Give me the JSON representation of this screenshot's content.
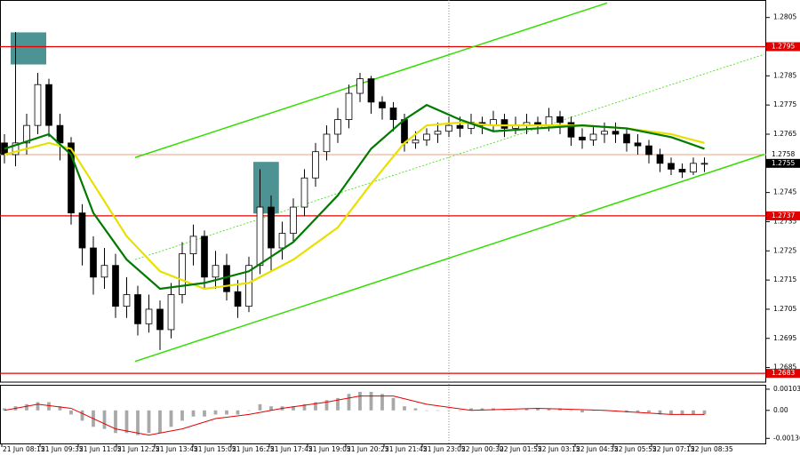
{
  "chart_data": {
    "type": "candlestick",
    "open": [
      1.2762,
      1.2758,
      1.2762,
      1.2768,
      1.2782,
      1.2768,
      1.2762,
      1.2738,
      1.2726,
      1.2716,
      1.272,
      1.2706,
      1.271,
      1.27,
      1.2705,
      1.2698,
      1.271,
      1.2724,
      1.273,
      1.2716,
      1.272,
      1.2711,
      1.2706,
      1.272,
      1.274,
      1.2726,
      1.2731,
      1.274,
      1.275,
      1.2759,
      1.2765,
      1.277,
      1.2779,
      1.2784,
      1.2776,
      1.2774,
      1.277,
      1.2762,
      1.2763,
      1.2765,
      1.2766,
      1.2768,
      1.2767,
      1.2769,
      1.2768,
      1.277,
      1.2767,
      1.2768,
      1.2769,
      1.2768,
      1.2771,
      1.2769,
      1.2764,
      1.2763,
      1.2765,
      1.2766,
      1.2765,
      1.2762,
      1.2761,
      1.2758,
      1.2755,
      1.2753,
      1.2752,
      1.2755
    ],
    "high": [
      1.2765,
      1.28,
      1.2772,
      1.2786,
      1.2784,
      1.2772,
      1.2764,
      1.2741,
      1.273,
      1.2726,
      1.2724,
      1.2716,
      1.2713,
      1.271,
      1.2708,
      1.2714,
      1.2728,
      1.2734,
      1.2732,
      1.2725,
      1.2724,
      1.2715,
      1.2723,
      1.2753,
      1.2744,
      1.2735,
      1.2743,
      1.2753,
      1.2762,
      1.2768,
      1.2774,
      1.2782,
      1.2786,
      1.2785,
      1.2778,
      1.2776,
      1.2772,
      1.2766,
      1.2767,
      1.2769,
      1.2771,
      1.2771,
      1.2772,
      1.2771,
      1.2773,
      1.2772,
      1.2771,
      1.2772,
      1.2771,
      1.2774,
      1.2773,
      1.2771,
      1.2767,
      1.2768,
      1.2769,
      1.2769,
      1.2767,
      1.2765,
      1.2763,
      1.276,
      1.2757,
      1.2755,
      1.2757,
      1.2757
    ],
    "low": [
      1.2755,
      1.2754,
      1.2758,
      1.2765,
      1.2764,
      1.2756,
      1.2734,
      1.272,
      1.271,
      1.2712,
      1.2702,
      1.2702,
      1.2696,
      1.2697,
      1.2691,
      1.2695,
      1.2707,
      1.272,
      1.2712,
      1.2712,
      1.2708,
      1.2702,
      1.2704,
      1.2717,
      1.2718,
      1.2722,
      1.2728,
      1.2737,
      1.2747,
      1.2756,
      1.2762,
      1.2767,
      1.2776,
      1.2772,
      1.277,
      1.2766,
      1.2759,
      1.276,
      1.2761,
      1.2762,
      1.2764,
      1.2764,
      1.2765,
      1.2765,
      1.2766,
      1.2764,
      1.2765,
      1.2765,
      1.2765,
      1.2766,
      1.2765,
      1.2761,
      1.276,
      1.2761,
      1.2762,
      1.2762,
      1.2759,
      1.2758,
      1.2755,
      1.2752,
      1.2751,
      1.275,
      1.2751,
      1.2752
    ],
    "close": [
      1.2758,
      1.2762,
      1.2768,
      1.2782,
      1.2768,
      1.2762,
      1.2738,
      1.2726,
      1.2716,
      1.272,
      1.2706,
      1.271,
      1.27,
      1.2705,
      1.2698,
      1.271,
      1.2724,
      1.273,
      1.2716,
      1.272,
      1.2711,
      1.2706,
      1.272,
      1.274,
      1.2726,
      1.2731,
      1.274,
      1.275,
      1.2759,
      1.2765,
      1.277,
      1.2779,
      1.2784,
      1.2776,
      1.2774,
      1.277,
      1.2762,
      1.2763,
      1.2765,
      1.2766,
      1.2768,
      1.2767,
      1.2769,
      1.2768,
      1.277,
      1.2767,
      1.2768,
      1.2769,
      1.2768,
      1.2771,
      1.2769,
      1.2764,
      1.2763,
      1.2765,
      1.2766,
      1.2765,
      1.2762,
      1.2761,
      1.2758,
      1.2755,
      1.2753,
      1.2752,
      1.2755,
      1.2755
    ],
    "up_color": "#ffffff",
    "down_color": "#000000",
    "xlim": [
      -0.4,
      68.4
    ],
    "xticks": [
      {
        "value": -0.24,
        "label": "21 Jun 08:15"
      },
      {
        "value": 3.2,
        "label": "21 Jun 09:35"
      },
      {
        "value": 6.64,
        "label": "21 Jun 11:05"
      },
      {
        "value": 10.08,
        "label": "21 Jun 12:25"
      },
      {
        "value": 13.52,
        "label": "21 Jun 13:45"
      },
      {
        "value": 16.96,
        "label": "21 Jun 15:05"
      },
      {
        "value": 20.4,
        "label": "21 Jun 16:25"
      },
      {
        "value": 23.84,
        "label": "21 Jun 17:45"
      },
      {
        "value": 27.28,
        "label": "21 Jun 19:05"
      },
      {
        "value": 30.72,
        "label": "21 Jun 20:25"
      },
      {
        "value": 34.16,
        "label": "21 Jun 21:45"
      },
      {
        "value": 37.6,
        "label": "21 Jun 23:05"
      },
      {
        "value": 41.04,
        "label": "22 Jun 00:30"
      },
      {
        "value": 44.48,
        "label": "22 Jun 01:55"
      },
      {
        "value": 47.92,
        "label": "22 Jun 03:15"
      },
      {
        "value": 51.36,
        "label": "22 Jun 04:35"
      },
      {
        "value": 54.8,
        "label": "22 Jun 05:55"
      },
      {
        "value": 58.24,
        "label": "22 Jun 07:15"
      },
      {
        "value": 61.68,
        "label": "22 Jun 08:35"
      }
    ],
    "ylim": [
      1.268,
      1.2811
    ],
    "yticks": [
      1.2685,
      1.2695,
      1.2705,
      1.2715,
      1.2725,
      1.2735,
      1.2745,
      1.2755,
      1.2765,
      1.2775,
      1.2785,
      1.2795,
      1.2805
    ],
    "series": [
      {
        "color": "#e8e000",
        "x": [
          0,
          4,
          6,
          8,
          11,
          14,
          18,
          22,
          26,
          30,
          33,
          36,
          38,
          41,
          44,
          48,
          52,
          56,
          60,
          63
        ],
        "values": [
          1.2758,
          1.2762,
          1.276,
          1.2748,
          1.273,
          1.2718,
          1.2712,
          1.2714,
          1.2722,
          1.2733,
          1.2748,
          1.2762,
          1.2768,
          1.2769,
          1.2768,
          1.2768,
          1.2768,
          1.2767,
          1.2765,
          1.2762
        ]
      },
      {
        "color": "#007a00",
        "x": [
          0,
          4,
          6,
          8,
          11,
          14,
          18,
          22,
          26,
          30,
          33,
          36,
          38,
          41,
          44,
          48,
          52,
          56,
          60,
          63
        ],
        "values": [
          1.276,
          1.2765,
          1.2758,
          1.2738,
          1.2722,
          1.2712,
          1.2714,
          1.2718,
          1.2728,
          1.2744,
          1.276,
          1.277,
          1.2775,
          1.277,
          1.2766,
          1.2767,
          1.2768,
          1.2767,
          1.2764,
          1.276
        ]
      }
    ],
    "trendlines": [
      {
        "color": "#33dd00",
        "x": [
          11.76,
          54.24
        ],
        "values": [
          1.2757,
          1.281
        ]
      },
      {
        "color": "#33dd00",
        "x": [
          11.76,
          68.4
        ],
        "values": [
          1.26871,
          1.27581
        ]
      },
      {
        "color": "#33dd00",
        "dashed": true,
        "x": [
          11.76,
          68.4
        ],
        "values": [
          1.2722,
          1.27924
        ]
      }
    ],
    "zones": [
      {
        "color": "#2f8080",
        "x": [
          0.56,
          3.76
        ],
        "values": [
          1.27889,
          1.27999
        ]
      },
      {
        "color": "#2f8080",
        "x": [
          22.4,
          24.7
        ],
        "values": [
          1.27378,
          1.27555
        ]
      }
    ],
    "levels": [
      {
        "value": 1.2795,
        "color": "#e00000"
      },
      {
        "value": 1.2737,
        "color": "#e00000"
      },
      {
        "value": 1.2683,
        "color": "#e00000"
      }
    ],
    "bid": {
      "value": 1.2758,
      "color": "#f0a080"
    },
    "last": {
      "value": 1.2755,
      "color": "#000000"
    },
    "macd": {
      "ylim": [
        -0.00165,
        0.0012
      ],
      "yticks": [
        0.00103,
        {
          "value": 0,
          "label": "0.00"
        },
        -0.00136
      ],
      "color": "#a8a8a8",
      "values": [
        0.0001,
        0.0002,
        0.0003,
        0.0004,
        0.0004,
        0.0002,
        -0.0002,
        -0.0005,
        -0.0008,
        -0.0009,
        -0.0011,
        -0.0011,
        -0.0012,
        -0.0011,
        -0.0011,
        -0.0008,
        -0.0005,
        -0.0003,
        -0.0003,
        -0.0002,
        -0.0002,
        -0.0002,
        0.0,
        0.0003,
        0.0002,
        0.0002,
        0.0002,
        0.0003,
        0.0004,
        0.0005,
        0.0006,
        0.0008,
        0.0009,
        0.0009,
        0.0008,
        0.0006,
        0.0002,
        0.0001,
        0.0,
        0.0,
        0.0,
        0.0,
        0.0001,
        0.0001,
        0.0001,
        0.0,
        0.0,
        0.0001,
        0.0001,
        0.0001,
        0.0001,
        0.0,
        -0.0001,
        0.0,
        0.0,
        0.0,
        -0.0001,
        -0.0001,
        -0.0001,
        -0.0002,
        -0.0002,
        -0.0002,
        -0.0002,
        -0.0002
      ],
      "signal": {
        "color": "#e00000",
        "x": [
          0,
          3,
          6,
          8,
          10,
          13,
          16,
          19,
          22,
          25,
          29,
          32,
          35,
          38,
          42,
          48,
          54,
          60,
          63
        ],
        "values": [
          0.0,
          0.0003,
          0.0001,
          -0.0004,
          -0.0009,
          -0.0012,
          -0.0009,
          -0.0004,
          -0.0002,
          0.0001,
          0.0004,
          0.0007,
          0.0007,
          0.0003,
          0.0,
          0.0001,
          0.0,
          -0.0002,
          -0.0002
        ]
      }
    }
  }
}
